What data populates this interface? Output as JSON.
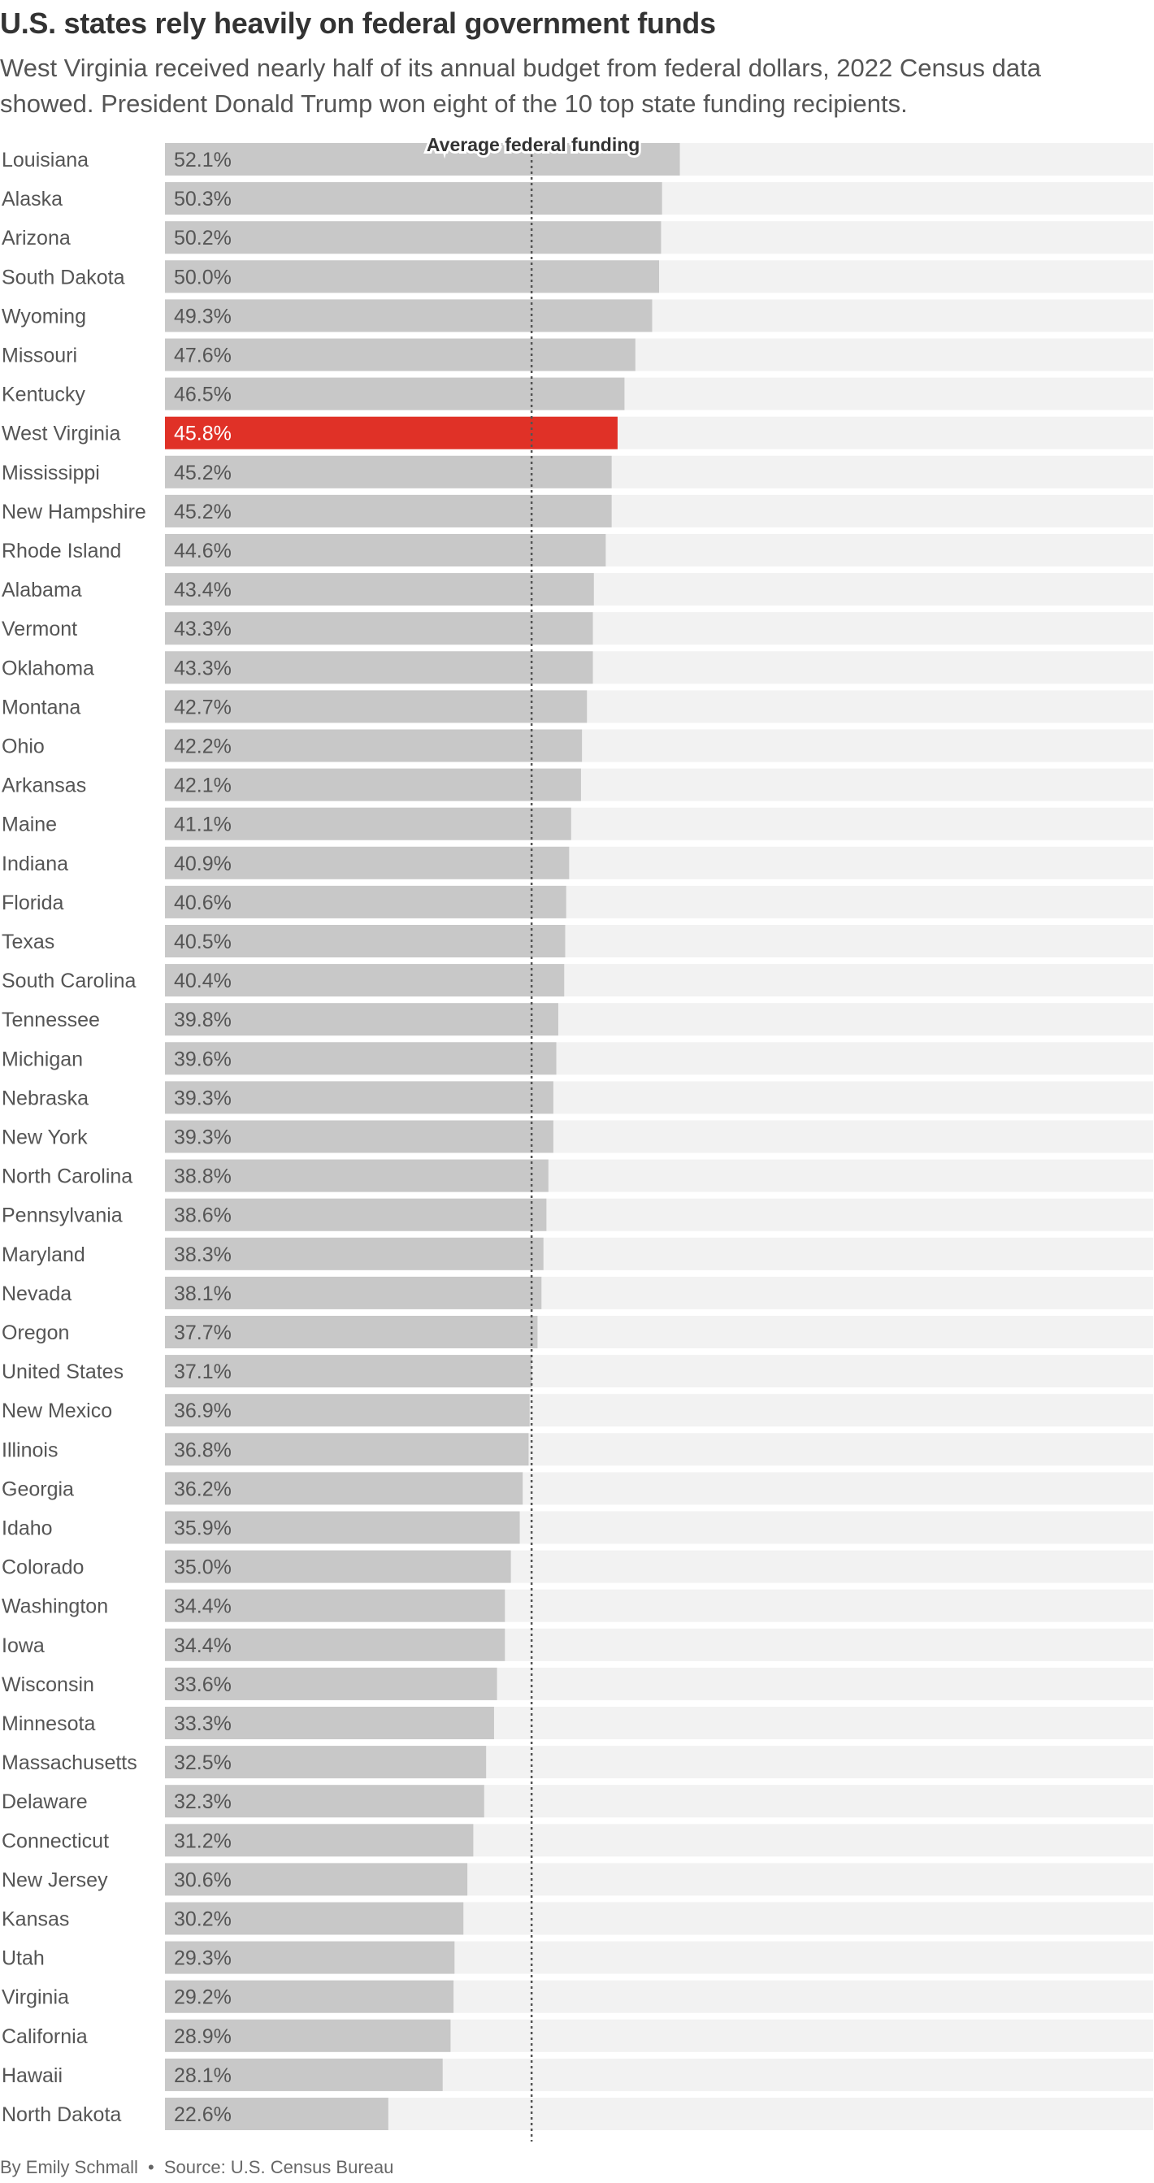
{
  "header": {
    "title": "U.S. states rely heavily on federal government funds",
    "subtitle": "West Virginia received nearly half of its annual budget from federal dollars, 2022 Census data showed. President Donald Trump won eight of the 10 top state funding recipients."
  },
  "footer": {
    "byline": "By Emily Schmall",
    "separator": "•",
    "source": "Source: U.S. Census Bureau"
  },
  "colors": {
    "bar": "#c8c8c8",
    "track": "#f2f2f2",
    "highlight": "#e03127",
    "reference_line": "#555555"
  },
  "chart_data": {
    "type": "bar",
    "orientation": "horizontal",
    "value_suffix": "%",
    "xlim": [
      0,
      100
    ],
    "grid": false,
    "reference_line": {
      "label": "Average federal funding",
      "value": 37.1
    },
    "highlight": [
      "West Virginia"
    ],
    "categories": [
      "Louisiana",
      "Alaska",
      "Arizona",
      "South Dakota",
      "Wyoming",
      "Missouri",
      "Kentucky",
      "West Virginia",
      "Mississippi",
      "New Hampshire",
      "Rhode Island",
      "Alabama",
      "Vermont",
      "Oklahoma",
      "Montana",
      "Ohio",
      "Arkansas",
      "Maine",
      "Indiana",
      "Florida",
      "Texas",
      "South Carolina",
      "Tennessee",
      "Michigan",
      "Nebraska",
      "New York",
      "North Carolina",
      "Pennsylvania",
      "Maryland",
      "Nevada",
      "Oregon",
      "United States",
      "New Mexico",
      "Illinois",
      "Georgia",
      "Idaho",
      "Colorado",
      "Washington",
      "Iowa",
      "Wisconsin",
      "Minnesota",
      "Massachusetts",
      "Delaware",
      "Connecticut",
      "New Jersey",
      "Kansas",
      "Utah",
      "Virginia",
      "California",
      "Hawaii",
      "North Dakota"
    ],
    "values": [
      52.1,
      50.3,
      50.2,
      50.0,
      49.3,
      47.6,
      46.5,
      45.8,
      45.2,
      45.2,
      44.6,
      43.4,
      43.3,
      43.3,
      42.7,
      42.2,
      42.1,
      41.1,
      40.9,
      40.6,
      40.5,
      40.4,
      39.8,
      39.6,
      39.3,
      39.3,
      38.8,
      38.6,
      38.3,
      38.1,
      37.7,
      37.1,
      36.9,
      36.8,
      36.2,
      35.9,
      35.0,
      34.4,
      34.4,
      33.6,
      33.3,
      32.5,
      32.3,
      31.2,
      30.6,
      30.2,
      29.3,
      29.2,
      28.9,
      28.1,
      22.6
    ]
  }
}
